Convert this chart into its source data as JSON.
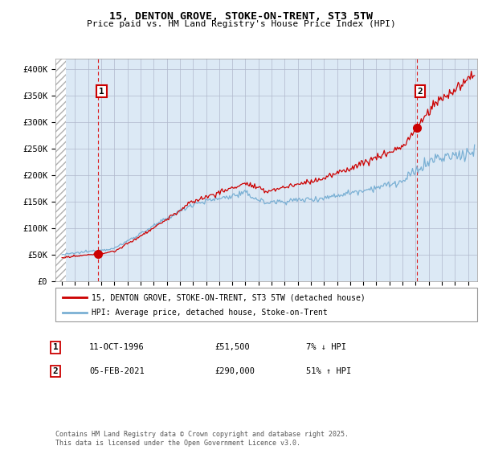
{
  "title": "15, DENTON GROVE, STOKE-ON-TRENT, ST3 5TW",
  "subtitle": "Price paid vs. HM Land Registry's House Price Index (HPI)",
  "ylim": [
    0,
    420000
  ],
  "xlim_start": 1993.5,
  "xlim_end": 2025.7,
  "yticks": [
    0,
    50000,
    100000,
    150000,
    200000,
    250000,
    300000,
    350000,
    400000
  ],
  "ytick_labels": [
    "£0",
    "£50K",
    "£100K",
    "£150K",
    "£200K",
    "£250K",
    "£300K",
    "£350K",
    "£400K"
  ],
  "xticks": [
    1994,
    1995,
    1996,
    1997,
    1998,
    1999,
    2000,
    2001,
    2002,
    2003,
    2004,
    2005,
    2006,
    2007,
    2008,
    2009,
    2010,
    2011,
    2012,
    2013,
    2014,
    2015,
    2016,
    2017,
    2018,
    2019,
    2020,
    2021,
    2022,
    2023,
    2024,
    2025
  ],
  "sale1_x": 1996.78,
  "sale1_y": 51500,
  "sale1_label": "1",
  "sale1_date": "11-OCT-1996",
  "sale1_price": "£51,500",
  "sale1_hpi": "7% ↓ HPI",
  "sale2_x": 2021.09,
  "sale2_y": 290000,
  "sale2_label": "2",
  "sale2_date": "05-FEB-2021",
  "sale2_price": "£290,000",
  "sale2_hpi": "51% ↑ HPI",
  "legend_line1": "15, DENTON GROVE, STOKE-ON-TRENT, ST3 5TW (detached house)",
  "legend_line2": "HPI: Average price, detached house, Stoke-on-Trent",
  "footer": "Contains HM Land Registry data © Crown copyright and database right 2025.\nThis data is licensed under the Open Government Licence v3.0.",
  "line_color_red": "#cc0000",
  "line_color_blue": "#7ab0d4",
  "bg_color": "#dce9f5",
  "hatch_color": "#b0b0b0",
  "grid_color": "#b0b8cc",
  "vline_color": "#dd0000"
}
